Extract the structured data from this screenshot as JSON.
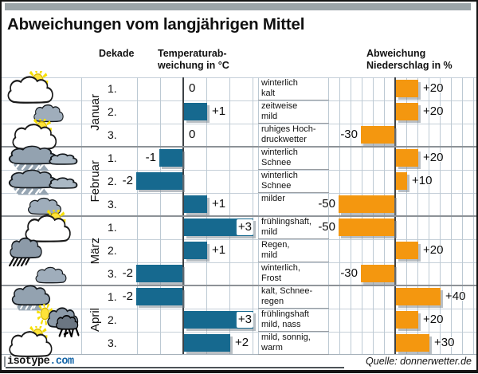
{
  "title": "Abweichungen vom langjährigen Mittel",
  "headers": {
    "dekade": "Dekade",
    "temperature": "Temperaturab-\nweichung in °C",
    "precipitation": "Abweichung\nNiederschlag in %"
  },
  "months": [
    {
      "name": "Januar",
      "rows": [
        {
          "dekade": "1.",
          "icon": "sun-cloud",
          "temp": 0,
          "temp_label": "0",
          "desc": "winterlich\nkalt",
          "precip": 20,
          "precip_label": "+20"
        },
        {
          "dekade": "2.",
          "icon": "cloud",
          "temp": 1,
          "temp_label": "+1",
          "desc": "zeitweise\nmild",
          "precip": 20,
          "precip_label": "+20"
        },
        {
          "dekade": "3.",
          "icon": "sun-cloud",
          "temp": 0,
          "temp_label": "0",
          "desc": "ruhiges Hoch-\ndruckwetter",
          "precip": -30,
          "precip_label": "-30"
        }
      ]
    },
    {
      "name": "Februar",
      "rows": [
        {
          "dekade": "1.",
          "icon": "snow-clouds",
          "temp": -1,
          "temp_label": "-1",
          "desc": "winterlich\nSchnee",
          "precip": 20,
          "precip_label": "+20"
        },
        {
          "dekade": "2.",
          "icon": "snow-clouds",
          "temp": -2,
          "temp_label": "-2",
          "desc": "winterlich\nSchnee",
          "precip": 10,
          "precip_label": "+10"
        },
        {
          "dekade": "3.",
          "icon": "cloud",
          "temp": 1,
          "temp_label": "+1",
          "desc": "milder",
          "precip": -50,
          "precip_label": "-50"
        }
      ]
    },
    {
      "name": "März",
      "rows": [
        {
          "dekade": "1.",
          "icon": "sun-cloud",
          "temp": 3,
          "temp_label": "+3",
          "desc": "frühlingshaft,\nmild",
          "precip": -50,
          "precip_label": "-50"
        },
        {
          "dekade": "2.",
          "icon": "rain-cloud",
          "temp": 1,
          "temp_label": "+1",
          "desc": "Regen,\nmild",
          "precip": 20,
          "precip_label": "+20"
        },
        {
          "dekade": "3.",
          "icon": "cloud",
          "temp": -2,
          "temp_label": "-2",
          "desc": "winterlich,\nFrost",
          "precip": -30,
          "precip_label": "-30"
        }
      ]
    },
    {
      "name": "April",
      "rows": [
        {
          "dekade": "1.",
          "icon": "snow-cloud",
          "temp": -2,
          "temp_label": "-2",
          "desc": "kalt, Schnee-\nregen",
          "precip": 40,
          "precip_label": "+40"
        },
        {
          "dekade": "2.",
          "icon": "sun-sleet-cloud",
          "temp": 3,
          "temp_label": "+3",
          "desc": "frühlingshaft\nmild, nass",
          "precip": 20,
          "precip_label": "+20"
        },
        {
          "dekade": "3.",
          "icon": "sun-cloud",
          "temp": 2,
          "temp_label": "+2",
          "desc": "mild, sonnig,\nwarm",
          "precip": 30,
          "precip_label": "+30"
        }
      ]
    }
  ],
  "footer": {
    "brand": "isotype",
    "brand_suffix": ".com",
    "source": "Quelle: donnerwetter.de"
  },
  "colors": {
    "temperature_bar": "#16698f",
    "precipitation_bar": "#f4970f",
    "grid": "#bcc9d3",
    "zero_line": "#3d4246",
    "topbar": "#9ca5a9"
  },
  "chart_data": {
    "type": "bar",
    "title": "Abweichungen vom langjährigen Mittel",
    "categories": [
      "Januar 1.",
      "Januar 2.",
      "Januar 3.",
      "Februar 1.",
      "Februar 2.",
      "Februar 3.",
      "März 1.",
      "März 2.",
      "März 3.",
      "April 1.",
      "April 2.",
      "April 3."
    ],
    "series": [
      {
        "name": "Temperaturabweichung in °C",
        "values": [
          0,
          1,
          0,
          -1,
          -2,
          1,
          3,
          1,
          -2,
          -2,
          3,
          2
        ]
      },
      {
        "name": "Abweichung Niederschlag in %",
        "values": [
          20,
          20,
          -30,
          20,
          10,
          -50,
          -50,
          20,
          -30,
          40,
          20,
          30
        ]
      }
    ],
    "annotations": [
      "winterlich kalt",
      "zeitweise mild",
      "ruhiges Hochdruckwetter",
      "winterlich Schnee",
      "winterlich Schnee",
      "milder",
      "frühlingshaft, mild",
      "Regen, mild",
      "winterlich, Frost",
      "kalt, Schneeregen",
      "frühlingshaft mild, nass",
      "mild, sonnig, warm"
    ],
    "xlabel": "Dekade",
    "orientation": "horizontal",
    "temp_axis_range": [
      -3,
      3
    ],
    "precip_axis_range": [
      -60,
      70
    ],
    "grid": true,
    "source": "Quelle: donnerwetter.de"
  }
}
